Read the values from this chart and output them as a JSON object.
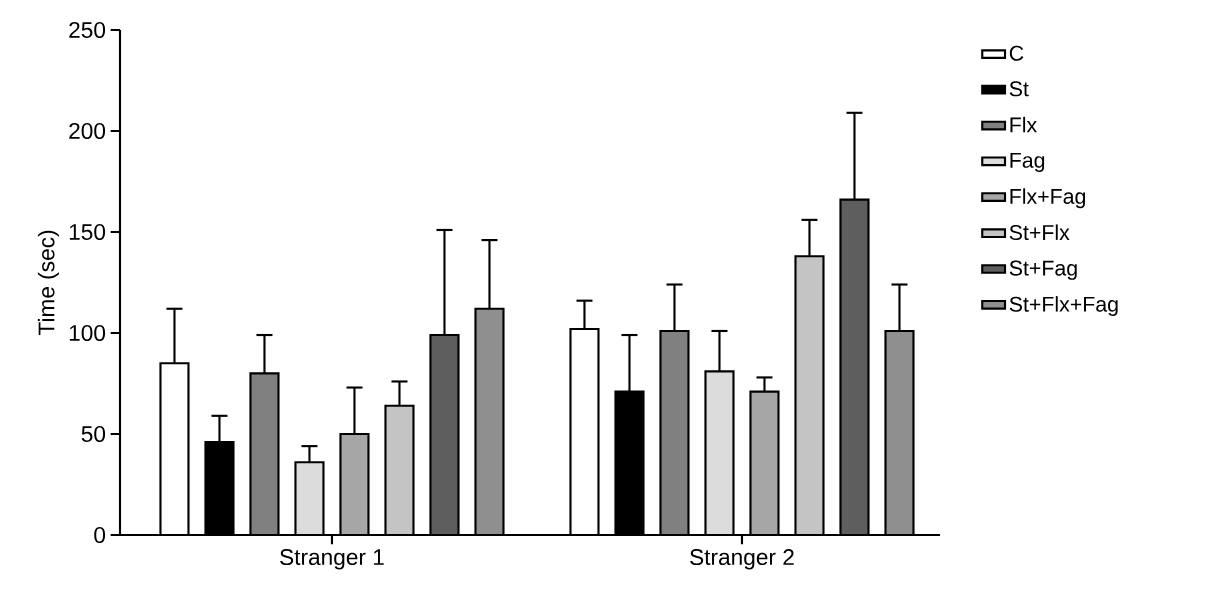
{
  "chart_data": {
    "type": "bar",
    "ylabel": "Time (sec)",
    "categories": [
      "Stranger 1",
      "Stranger 2"
    ],
    "series": [
      {
        "name": "C",
        "color": "#ffffff",
        "values": [
          85,
          102
        ],
        "errors": [
          27,
          14
        ]
      },
      {
        "name": "St",
        "color": "#000000",
        "values": [
          46,
          71
        ],
        "errors": [
          13,
          28
        ]
      },
      {
        "name": "Flx",
        "color": "#808080",
        "values": [
          80,
          101
        ],
        "errors": [
          19,
          23
        ]
      },
      {
        "name": "Fag",
        "color": "#dcdcdc",
        "values": [
          36,
          81
        ],
        "errors": [
          8,
          20
        ]
      },
      {
        "name": "Flx+Fag",
        "color": "#a6a6a6",
        "values": [
          50,
          71
        ],
        "errors": [
          23,
          7
        ]
      },
      {
        "name": "St+Flx",
        "color": "#c4c4c4",
        "values": [
          64,
          138
        ],
        "errors": [
          12,
          18
        ]
      },
      {
        "name": "St+Fag",
        "color": "#5e5e5e",
        "values": [
          99,
          166
        ],
        "errors": [
          52,
          43
        ]
      },
      {
        "name": "St+Flx+Fag",
        "color": "#8f8f8f",
        "values": [
          112,
          101
        ],
        "errors": [
          34,
          23
        ]
      }
    ],
    "ylim": [
      0,
      250
    ],
    "yticks": [
      0,
      50,
      100,
      150,
      200,
      250
    ],
    "grid": false,
    "legend": "right"
  }
}
